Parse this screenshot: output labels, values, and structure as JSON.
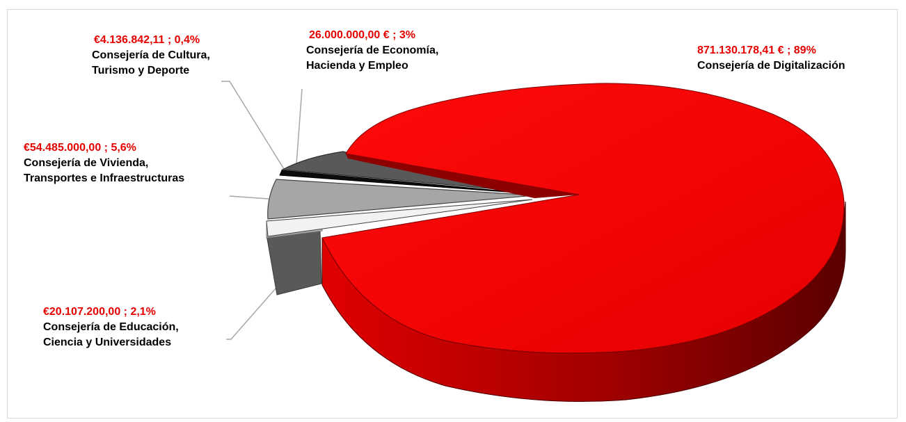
{
  "chart_data": {
    "type": "pie",
    "style": "3d-exploded",
    "title": "",
    "slices": [
      {
        "label": "Consejería de Digitalización",
        "value": 871130178.41,
        "display": "871.130.178,41 € ; 89%",
        "percent": 89,
        "color": "#ee0000",
        "side_color": "#a80000"
      },
      {
        "label": "Consejería de Educación, Ciencia y Universidades",
        "value": 20107200.0,
        "display": "€20.107.200,00 ; 2,1%",
        "percent": 2.1,
        "color": "#595959",
        "side_color": "#3a3a3a"
      },
      {
        "label": "Consejería de Vivienda, Transportes e Infraestructuras",
        "value": 54485000.0,
        "display": "€54.485.000,00 ; 5,6%",
        "percent": 5.6,
        "color": "#f2f2f2",
        "side_color": "#a6a6a6"
      },
      {
        "label": "Consejería de Economía, Hacienda y Empleo",
        "value": 26000000.0,
        "display": "26.000.000,00 € ; 3%",
        "percent": 3,
        "color": "#a6a6a6",
        "side_color": "#7f7f7f"
      },
      {
        "label": "Consejería de Cultura, Turismo y Deporte",
        "value": 4136842.11,
        "display": "€4.136.842,11 ; 0,4%",
        "percent": 0.4,
        "color": "#111111",
        "side_color": "#000000"
      }
    ]
  },
  "labels": {
    "digitalizacion": {
      "value": "871.130.178,41 € ; 89%",
      "name": "Consejería de Digitalización"
    },
    "economia": {
      "value": "26.000.000,00 € ; 3%",
      "name1": "Consejería de Economía,",
      "name2": "Hacienda y Empleo"
    },
    "cultura": {
      "value": "€4.136.842,11 ; 0,4%",
      "name1": "Consejería de Cultura,",
      "name2": "Turismo y Deporte"
    },
    "vivienda": {
      "value": "€54.485.000,00 ; 5,6%",
      "name1": "Consejería de Vivienda,",
      "name2": "Transportes e Infraestructuras"
    },
    "educacion": {
      "value": "€20.107.200,00 ; 2,1%",
      "name1": "Consejería de Educación,",
      "name2": "Ciencia y Universidades"
    }
  }
}
